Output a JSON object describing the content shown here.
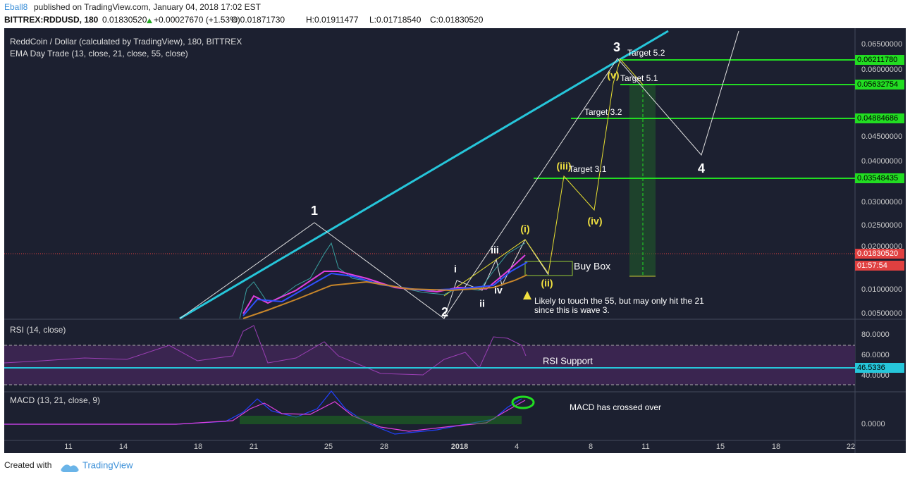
{
  "header": {
    "publisher": "Eball8",
    "published": "published on TradingView.com, January 04, 2018 17:02 EST",
    "symbol": "BITTREX:RDDUSD, 180",
    "last": "0.01830520",
    "change": "+0.00027670 (+1.53%)",
    "open": "O:0.01871730",
    "high": "H:0.01911477",
    "low": "L:0.01718540",
    "close": "C:0.01830520"
  },
  "chart": {
    "title": "ReddCoin / Dollar (calculated by TradingView), 180, BITTREX",
    "indicator": "EMA Day Trade (13, close, 21, close, 55, close)",
    "price_axis": [
      "0.06500000",
      "0.06000000",
      "0.04500000",
      "0.04000000",
      "0.03000000",
      "0.02500000",
      "0.02000000",
      "0.01000000",
      "0.00500000"
    ],
    "price_labels": [
      "0.06211780",
      "0.05632754",
      "0.04884686",
      "0.03548435"
    ],
    "last_price": "0.01830520",
    "countdown": "01:57:54",
    "rsi_title": "RSI (14, close)",
    "rsi_axis": [
      "80.0000",
      "60.0000",
      "40.0000"
    ],
    "rsi_value": "46.5336",
    "macd_title": "MACD (13, 21, close, 9)",
    "macd_axis": [
      "0.0000"
    ],
    "time_axis": [
      "11",
      "14",
      "18",
      "21",
      "25",
      "28",
      "2018",
      "4",
      "8",
      "11",
      "15",
      "18",
      "22"
    ],
    "annotations": [
      "1",
      "2",
      "3",
      "4",
      "i",
      "ii",
      "iii",
      "iv",
      "(i)",
      "(ii)",
      "(iii)",
      "(iv)",
      "(v)",
      "Target 5.2",
      "Target 5.1",
      "Target 3.2",
      "Target 3.1",
      "Buy Box",
      "Likely to touch the 55, but may only hit the 21",
      "since this is wave 3.",
      "RSI Support",
      "MACD has crossed over"
    ]
  },
  "footer": {
    "created": "Created with",
    "brand": "TradingView"
  }
}
